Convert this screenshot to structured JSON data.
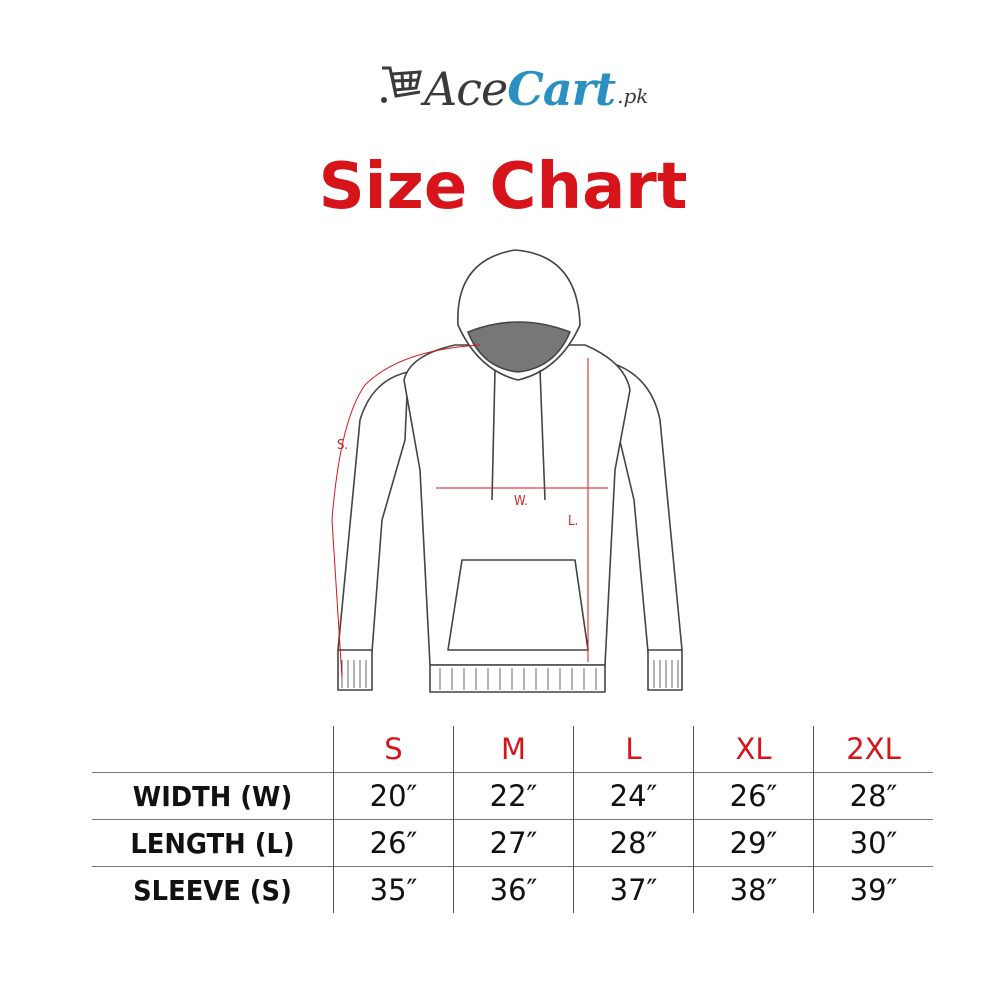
{
  "brand": {
    "name_part1": "Ace",
    "name_part2": "Cart",
    "suffix": ".pk",
    "colors": {
      "dark": "#3a3a3a",
      "blue": "#2a8fc1"
    },
    "icon": "shopping-cart-icon"
  },
  "title": "Size Chart",
  "diagram_labels": {
    "sleeve": "S.",
    "width": "W.",
    "length": "L."
  },
  "accent_color": "#d7141a",
  "table": {
    "sizes": [
      "S",
      "M",
      "L",
      "XL",
      "2XL"
    ],
    "rows": [
      {
        "label": "WIDTH (W)",
        "values": [
          "20″",
          "22″",
          "24″",
          "26″",
          "28″"
        ]
      },
      {
        "label": "LENGTH (L)",
        "values": [
          "26″",
          "27″",
          "28″",
          "29″",
          "30″"
        ]
      },
      {
        "label": "SLEEVE (S)",
        "values": [
          "35″",
          "36″",
          "37″",
          "38″",
          "39″"
        ]
      }
    ]
  }
}
